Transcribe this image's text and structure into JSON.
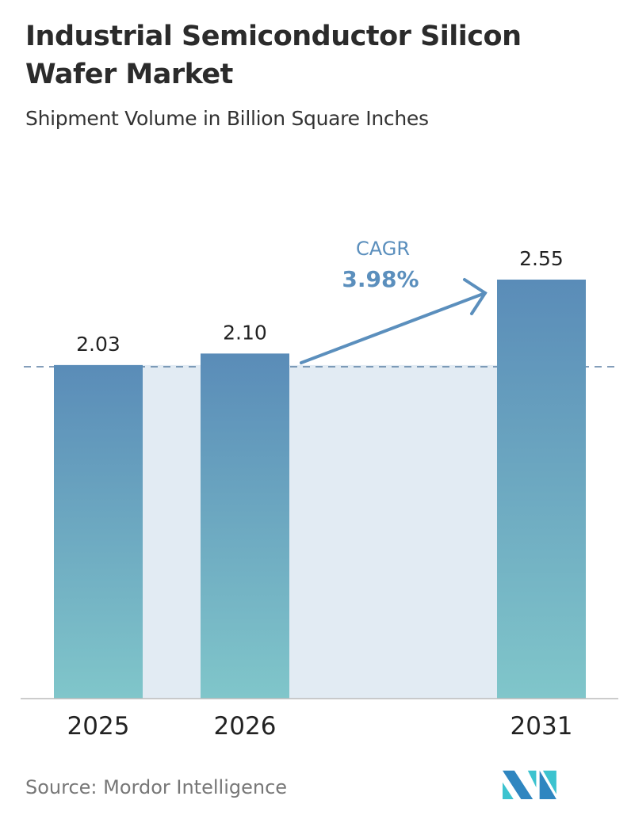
{
  "chart_data": {
    "type": "bar",
    "title": "Industrial Semiconductor Silicon Wafer Market",
    "subtitle": "Shipment Volume in Billion Square Inches",
    "categories": [
      "2025",
      "2026",
      "2031"
    ],
    "values": [
      2.03,
      2.1,
      2.55
    ],
    "value_labels": [
      "2.03",
      "2.10",
      "2.55"
    ],
    "ylim": [
      0,
      2.55
    ],
    "grid": false,
    "annotation": {
      "label": "CAGR",
      "value": "3.98%"
    },
    "colors": {
      "bar_top": "#5a8cb8",
      "bar_bottom": "#80c6ca",
      "fill_band": "#e2ebf3",
      "arrow": "#5b8fbd"
    }
  },
  "source": "Source:  Mordor Intelligence"
}
